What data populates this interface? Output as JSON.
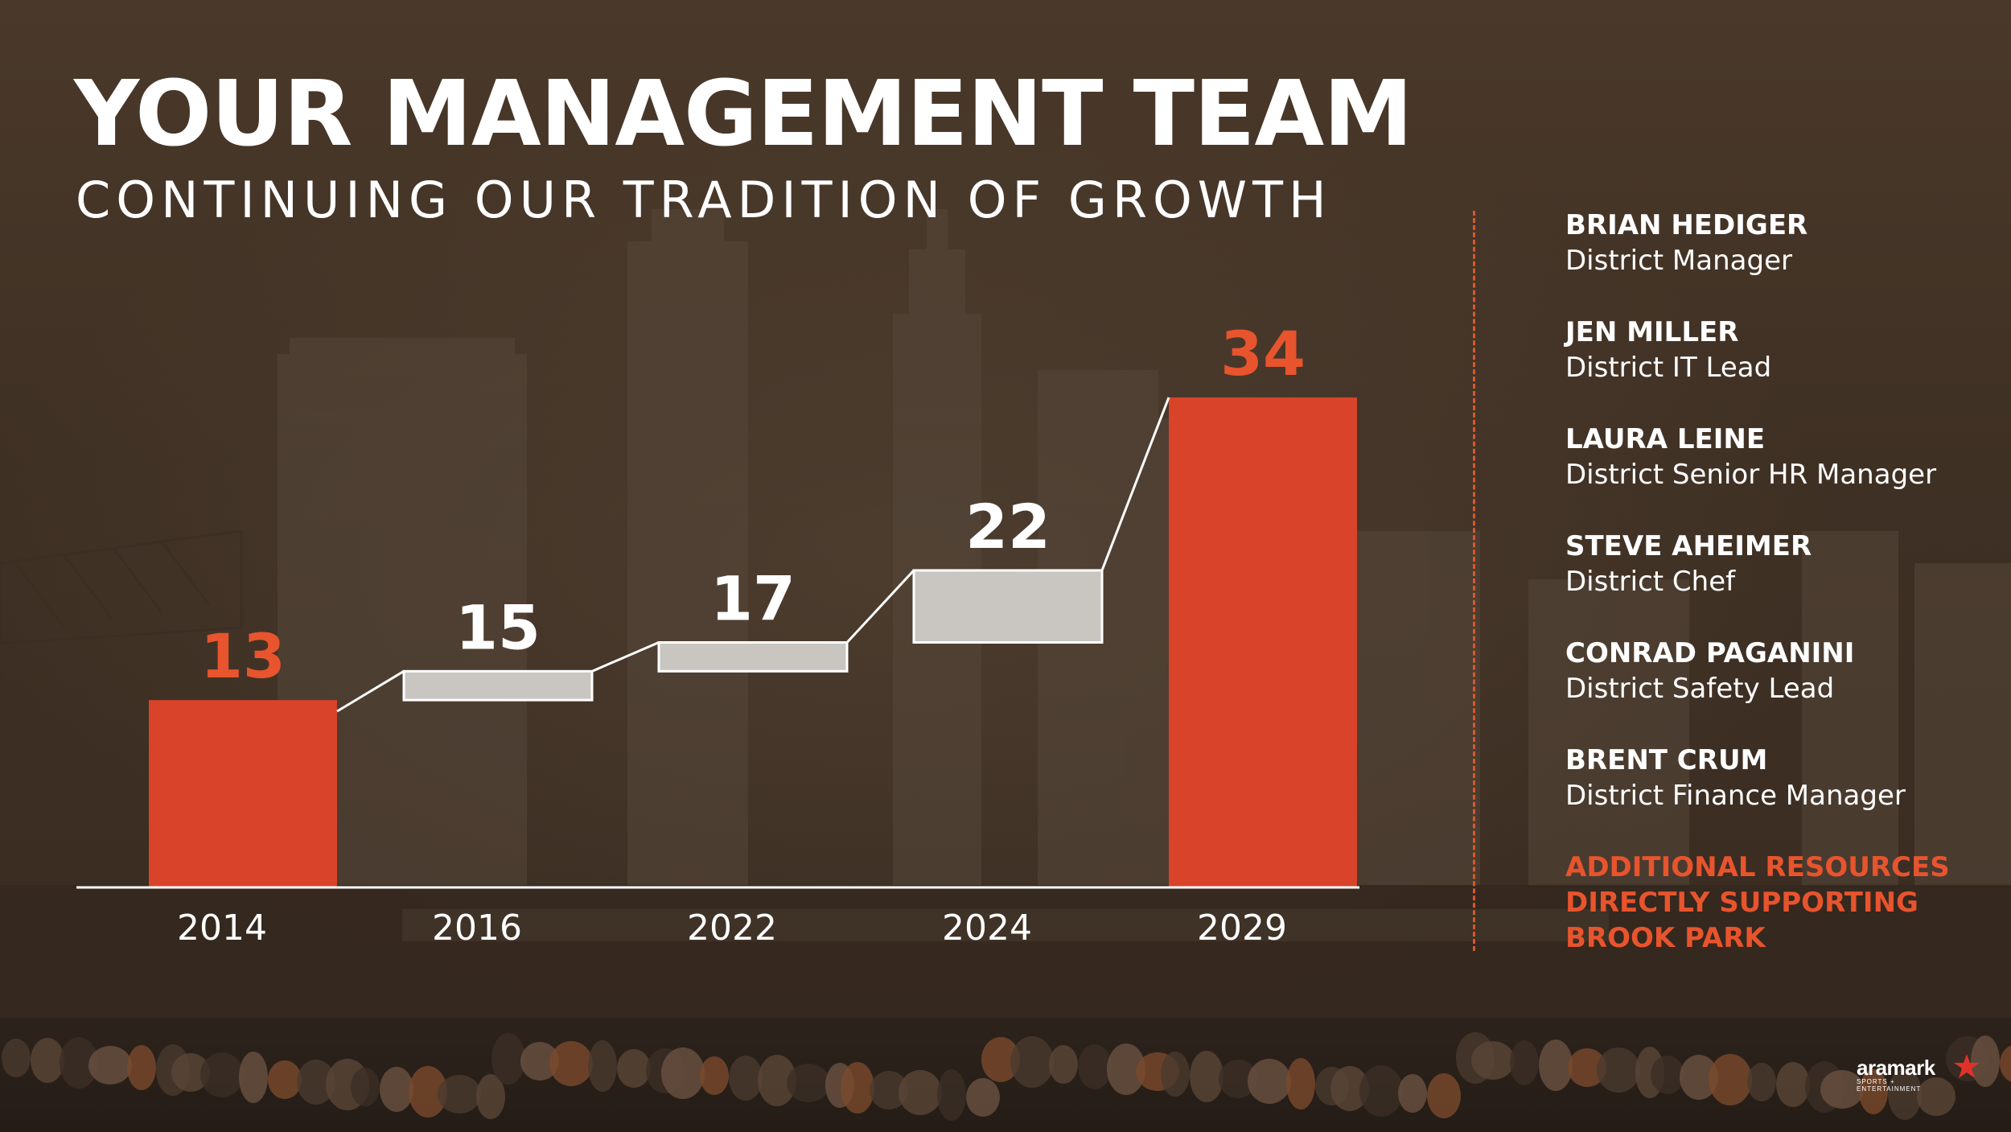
{
  "title": "YOUR MANAGEMENT TEAM",
  "subtitle": "CONTINUING OUR TRADITION OF GROWTH",
  "colors": {
    "accent": "#d8432a",
    "accent_text": "#e7542d",
    "step_fill": "#c9c6c2",
    "white": "#ffffff"
  },
  "chart_data": {
    "type": "bar",
    "categories": [
      "2014",
      "2016",
      "2022",
      "2024",
      "2029"
    ],
    "values": [
      13,
      15,
      17,
      22,
      34
    ],
    "data_labels": [
      "13",
      "15",
      "17",
      "22",
      "34"
    ],
    "style": "waterfall",
    "bar_kinds": [
      "total",
      "increment",
      "increment",
      "increment",
      "total"
    ],
    "bar_colors": [
      "#d8432a",
      "#c9c6c2",
      "#c9c6c2",
      "#c9c6c2",
      "#d8432a"
    ],
    "label_colors": [
      "#e7542d",
      "#ffffff",
      "#ffffff",
      "#ffffff",
      "#e7542d"
    ],
    "ylim": [
      0,
      34
    ],
    "grid": false,
    "legend": "none",
    "xlabel": "",
    "ylabel": ""
  },
  "team": {
    "members": [
      {
        "name": "BRIAN HEDIGER",
        "role": "District Manager"
      },
      {
        "name": "JEN MILLER",
        "role": "District IT Lead"
      },
      {
        "name": "LAURA LEINE",
        "role": "District Senior HR Manager"
      },
      {
        "name": "STEVE AHEIMER",
        "role": "District Chef"
      },
      {
        "name": "CONRAD PAGANINI",
        "role": "District Safety Lead"
      },
      {
        "name": "BRENT CRUM",
        "role": "District Finance Manager"
      }
    ],
    "additional_lines": [
      "ADDITIONAL RESOURCES",
      "DIRECTLY SUPPORTING",
      "BROOK PARK"
    ]
  },
  "logo": {
    "word": "aramark",
    "sub_line1": "SPORTS +",
    "sub_line2": "ENTERTAINMENT"
  }
}
